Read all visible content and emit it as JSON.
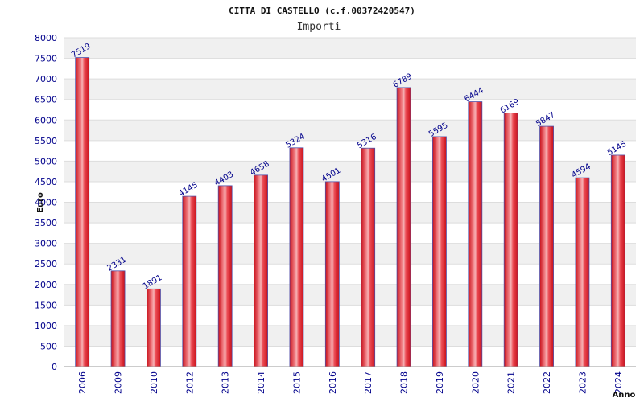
{
  "chart_data": {
    "type": "bar",
    "title": "CITTA DI CASTELLO (c.f.00372420547)",
    "subtitle": "Importi",
    "xlabel": "Anno",
    "ylabel": "Euro",
    "categories": [
      "2006",
      "2009",
      "2010",
      "2012",
      "2013",
      "2014",
      "2015",
      "2016",
      "2017",
      "2018",
      "2019",
      "2020",
      "2021",
      "2022",
      "2023",
      "2024"
    ],
    "values": [
      7519,
      2331,
      1891,
      4145,
      4403,
      4658,
      5324,
      4501,
      5316,
      6789,
      5595,
      6444,
      6169,
      5847,
      4594,
      5145
    ],
    "ylim": [
      0,
      8000
    ],
    "ytick_step": 500,
    "grid": true,
    "data_labels": true,
    "colors": {
      "bar_fill": "#e8212b",
      "bar_highlight": "#f4a6a6",
      "bar_outline": "#5050a8",
      "band_alt": "#f0f0f0",
      "tick_text": "#00008b"
    }
  }
}
